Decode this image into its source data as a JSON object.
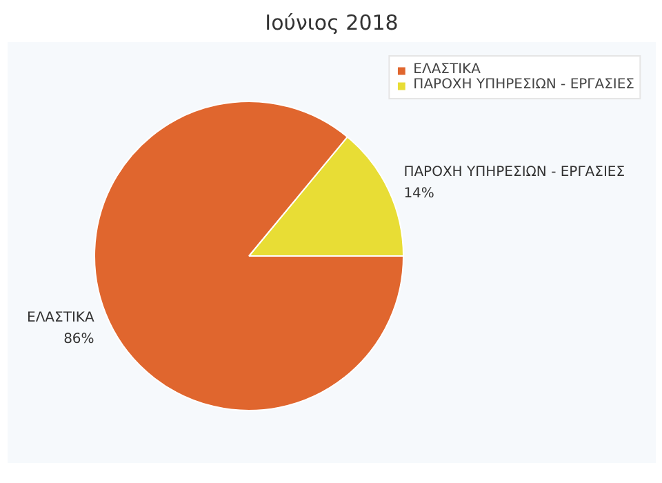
{
  "chart_data": {
    "type": "pie",
    "title": "Ιούνιος 2018",
    "categories": [
      "ΕΛΑΣΤΙΚΑ",
      "ΠΑΡΟΧΗ ΥΠΗΡΕΣΙΩΝ - ΕΡΓΑΣΙΕΣ"
    ],
    "values": [
      86,
      14
    ],
    "colors": [
      "#e0662e",
      "#e8dd35"
    ],
    "value_labels": [
      "86%",
      "14%"
    ],
    "legend": "top right"
  }
}
